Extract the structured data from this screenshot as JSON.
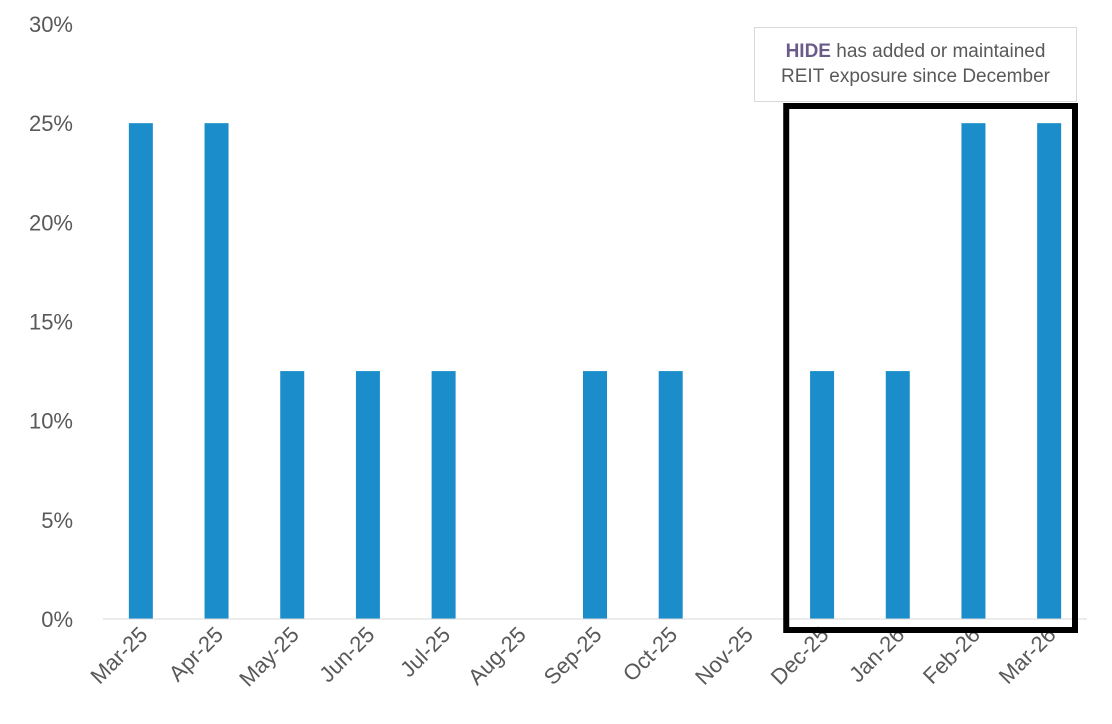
{
  "chart_data": {
    "type": "bar",
    "categories": [
      "Mar-25",
      "Apr-25",
      "May-25",
      "Jun-25",
      "Jul-25",
      "Aug-25",
      "Sep-25",
      "Oct-25",
      "Nov-25",
      "Dec-25",
      "Jan-26",
      "Feb-26",
      "Mar-26"
    ],
    "series": [
      {
        "values": [
          25,
          25,
          12.5,
          12.5,
          12.5,
          0,
          12.5,
          12.5,
          0,
          12.5,
          12.5,
          25,
          25
        ]
      }
    ],
    "ylim": [
      0,
      30
    ],
    "yticks": [
      0,
      5,
      10,
      15,
      20,
      25,
      30
    ],
    "ytick_labels": [
      "0%",
      "5%",
      "10%",
      "15%",
      "20%",
      "25%",
      "30%"
    ],
    "bar_color": "#1b8dca",
    "highlight": {
      "from": "Dec-25",
      "to": "Mar-26",
      "border_color": "#000000"
    },
    "annotation": {
      "bold": "HIDE",
      "line1_rest": " has added or maintained",
      "line2": "REIT exposure since December",
      "bold_color": "#6b5b8a"
    },
    "grid": false
  }
}
